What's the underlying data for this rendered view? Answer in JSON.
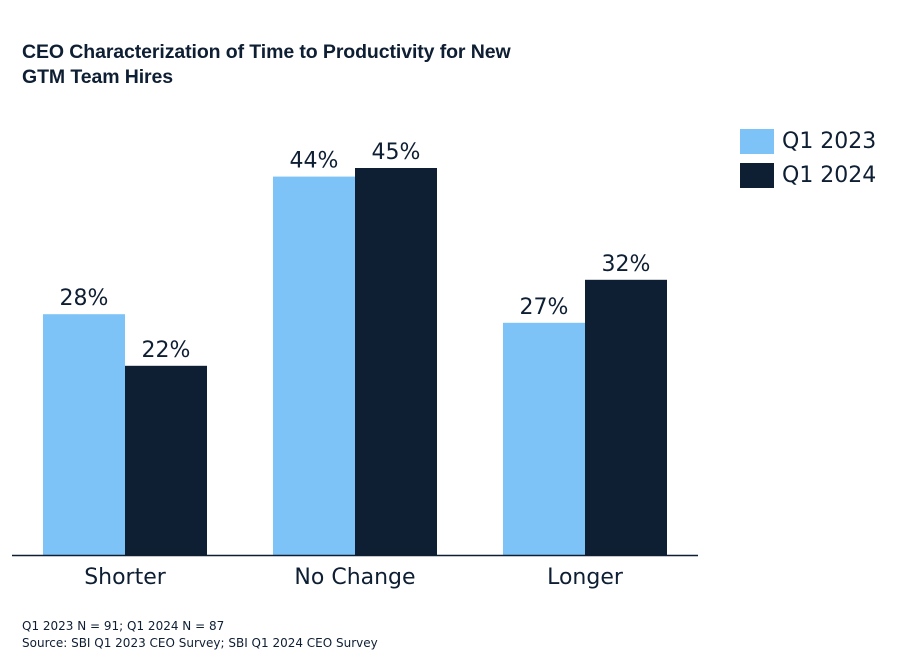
{
  "chart_data": {
    "type": "bar",
    "title": "CEO Characterization of Time to Productivity for New GTM Team Hires",
    "title_lines": [
      "CEO Characterization of Time to Productivity for New",
      "GTM Team Hires"
    ],
    "categories": [
      "Shorter",
      "No Change",
      "Longer"
    ],
    "series": [
      {
        "name": "Q1 2023",
        "color": "#7dc3f7",
        "values": [
          28,
          44,
          27
        ],
        "labels": [
          "28%",
          "44%",
          "27%"
        ]
      },
      {
        "name": "Q1 2024",
        "color": "#0e1e33",
        "values": [
          22,
          45,
          32
        ],
        "labels": [
          "22%",
          "45%",
          "32%"
        ]
      }
    ],
    "xlabel": "",
    "ylabel": "",
    "ylim": [
      0,
      50
    ],
    "y_axis_visible": false,
    "grid": false,
    "legend_position": "top-right",
    "value_unit": "%"
  },
  "footnotes": {
    "sample_size": "Q1 2023 N = 91; Q1 2024 N = 87",
    "source": "Source: SBI Q1 2023 CEO Survey; SBI Q1 2024 CEO Survey"
  }
}
